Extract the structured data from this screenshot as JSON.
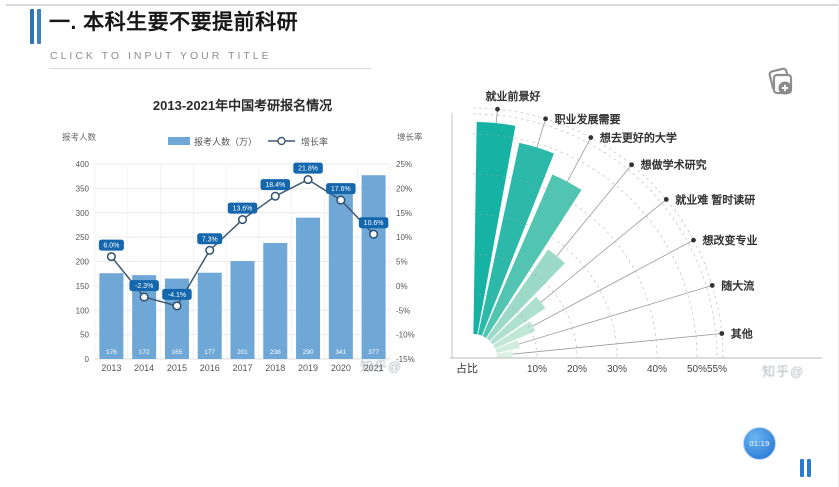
{
  "slide": {
    "title": "一. 本科生要不要提前科研",
    "subtitle": "CLICK TO INPUT YOUR TITLE"
  },
  "decorations": {
    "timer_label": "01:19",
    "watermark": "知乎@",
    "icons": [
      "duplicate-slide-icon",
      "timer-badge",
      "pause-icon"
    ]
  },
  "chart_data": [
    {
      "type": "bar",
      "subtype": "bar+line combo",
      "title": "2013-2021年中国考研报名情况",
      "left_axis_label": "报考人数",
      "right_axis_label": "增长率",
      "legend": [
        "报考人数（万）",
        "增长率"
      ],
      "legend_position": "top-center",
      "grid": true,
      "categories": [
        "2013",
        "2014",
        "2015",
        "2016",
        "2017",
        "2018",
        "2019",
        "2020",
        "2021"
      ],
      "series": [
        {
          "name": "报考人数（万）",
          "type": "bar",
          "color": "#6fa7d7",
          "values": [
            176,
            172,
            165,
            177,
            201,
            238,
            290,
            341,
            377
          ]
        },
        {
          "name": "增长率",
          "type": "line",
          "color": "#3f5a73",
          "marker": "open-circle",
          "values": [
            6.0,
            -2.3,
            -4.1,
            7.3,
            13.6,
            18.4,
            21.8,
            17.6,
            10.6
          ],
          "labels": [
            "6.0%",
            "-2.3%",
            "-4.1%",
            "7.3%",
            "13.6%",
            "18.4%",
            "21.8%",
            "17.6%",
            "10.6%"
          ],
          "label_badge_color": "#1467ad"
        }
      ],
      "left_axis": {
        "min": 0,
        "max": 400,
        "step": 50,
        "ticks": [
          "400",
          "350",
          "300",
          "250",
          "200",
          "150",
          "100",
          "50",
          "0"
        ]
      },
      "right_axis": {
        "min": -15,
        "max": 25,
        "step": 5,
        "ticks": [
          "25%",
          "20%",
          "15%",
          "10%",
          "5%",
          "0%",
          "-5%",
          "-10%",
          "-15%"
        ]
      }
    },
    {
      "type": "pie",
      "subtype": "quarter polar fan (rose) chart",
      "title": "",
      "xlabel": "占比",
      "axis_ticks": [
        10,
        20,
        30,
        40,
        50,
        55
      ],
      "axis_tick_labels": [
        "10%",
        "20%",
        "30%",
        "40%",
        "50%",
        "55%"
      ],
      "axis_max": 55,
      "grid": "dashed arcs",
      "categories": [
        "就业前景好",
        "职业发展需要",
        "想去更好的大学",
        "想做学术研究",
        "就业难 暂时读研",
        "想改变专业",
        "随大流",
        "其他"
      ],
      "values": [
        53,
        49,
        44,
        27,
        16,
        11,
        6,
        4
      ],
      "unit": "%",
      "colors": [
        "#16b2a3",
        "#2db9a9",
        "#52c4b2",
        "#9cdac7",
        "#aee0d0",
        "#c0e7d8",
        "#d0ecdf",
        "#ddf1e7"
      ]
    }
  ]
}
